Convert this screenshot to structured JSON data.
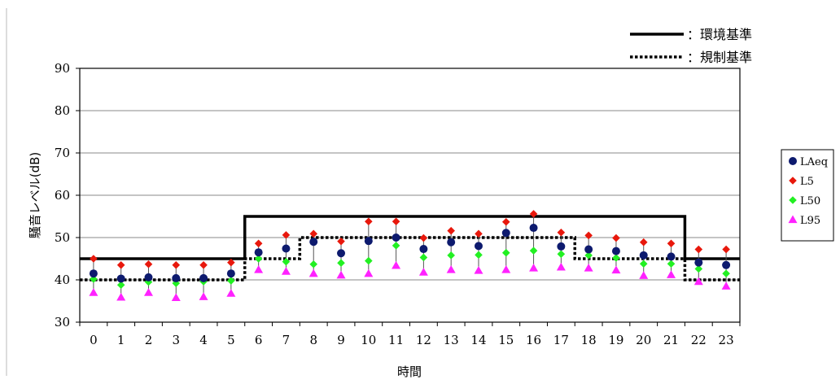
{
  "chart_data": {
    "type": "scatter",
    "xlabel": "時間",
    "ylabel": "騒音レベル(dB)",
    "ylim": [
      30,
      90
    ],
    "yticks": [
      30,
      40,
      50,
      60,
      70,
      80,
      90
    ],
    "categories": [
      "0",
      "1",
      "2",
      "3",
      "4",
      "5",
      "6",
      "7",
      "8",
      "9",
      "10",
      "11",
      "12",
      "13",
      "14",
      "15",
      "16",
      "17",
      "18",
      "19",
      "20",
      "21",
      "22",
      "23"
    ],
    "grid": true,
    "legend_position": "right",
    "series": [
      {
        "name": "LAeq",
        "marker": "circle",
        "color": "#0d1a6e",
        "values": [
          41.5,
          40.3,
          40.6,
          40.4,
          40.4,
          41.5,
          46.5,
          47.4,
          49.0,
          46.3,
          49.2,
          50.0,
          47.3,
          48.9,
          48.0,
          51.1,
          52.3,
          47.9,
          47.2,
          46.8,
          45.8,
          45.5,
          44.1,
          43.5
        ]
      },
      {
        "name": "L5",
        "marker": "diamond",
        "color": "#e8180c",
        "values": [
          45.0,
          43.5,
          43.7,
          43.5,
          43.5,
          44.1,
          48.6,
          50.6,
          50.9,
          49.1,
          53.8,
          53.8,
          49.9,
          51.6,
          50.9,
          53.7,
          55.6,
          51.2,
          50.5,
          49.9,
          48.9,
          48.6,
          47.2,
          47.2
        ]
      },
      {
        "name": "L50",
        "marker": "diamond",
        "color": "#22f022",
        "values": [
          40.2,
          38.8,
          39.5,
          39.2,
          39.6,
          39.8,
          45.0,
          44.3,
          43.7,
          44.0,
          44.5,
          48.1,
          45.3,
          45.8,
          45.9,
          46.4,
          46.9,
          46.1,
          45.8,
          45.2,
          43.8,
          43.8,
          42.6,
          41.5
        ]
      },
      {
        "name": "L95",
        "marker": "triangle",
        "color": "#ff22ff",
        "values": [
          37.0,
          35.9,
          37.0,
          35.8,
          36.0,
          36.8,
          42.4,
          42.0,
          41.5,
          41.1,
          41.5,
          43.4,
          41.8,
          42.4,
          42.2,
          42.4,
          42.8,
          43.0,
          42.8,
          42.3,
          41.0,
          41.2,
          39.6,
          38.5
        ]
      }
    ],
    "reference_lines": [
      {
        "name": "：環境基準",
        "style": "solid",
        "segments": [
          {
            "from": 0,
            "to": 6,
            "value": 45
          },
          {
            "from": 6,
            "to": 22,
            "value": 55
          },
          {
            "from": 22,
            "to": 24,
            "value": 45
          }
        ]
      },
      {
        "name": "：規制基準",
        "style": "dotted",
        "segments": [
          {
            "from": 0,
            "to": 6,
            "value": 40
          },
          {
            "from": 6,
            "to": 8,
            "value": 45
          },
          {
            "from": 8,
            "to": 18,
            "value": 50
          },
          {
            "from": 18,
            "to": 22,
            "value": 45
          },
          {
            "from": 22,
            "to": 24,
            "value": 40
          }
        ]
      }
    ]
  }
}
